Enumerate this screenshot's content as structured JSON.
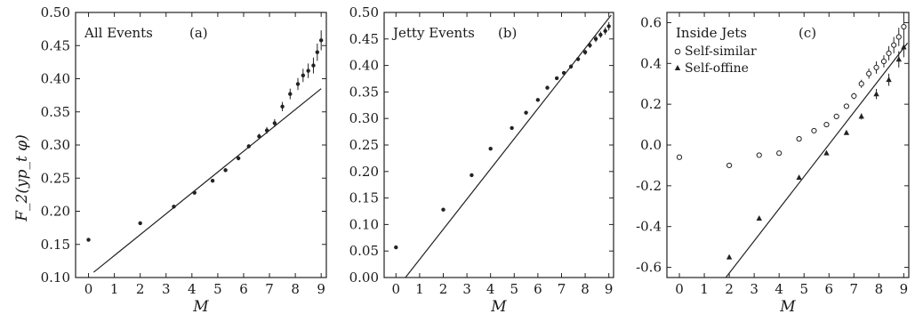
{
  "chart_data": [
    {
      "type": "scatter",
      "panel_label": "(a)",
      "title": "All Events",
      "xlabel": "M",
      "ylabel": "F_2(yp_t φ)",
      "xlim": [
        -0.5,
        9.2
      ],
      "ylim": [
        0.1,
        0.5
      ],
      "xticks": [
        0,
        1,
        2,
        3,
        4,
        5,
        6,
        7,
        8,
        9
      ],
      "yticks": [
        "0.10",
        "0.15",
        "0.20",
        "0.25",
        "0.30",
        "0.35",
        "0.40",
        "0.45",
        "0.50"
      ],
      "points": [
        {
          "x": 0,
          "y": 0.157,
          "err": 0.002
        },
        {
          "x": 2,
          "y": 0.182,
          "err": 0.002
        },
        {
          "x": 3.3,
          "y": 0.207,
          "err": 0.002
        },
        {
          "x": 4.1,
          "y": 0.228,
          "err": 0.002
        },
        {
          "x": 4.8,
          "y": 0.246,
          "err": 0.002
        },
        {
          "x": 5.3,
          "y": 0.262,
          "err": 0.003
        },
        {
          "x": 5.8,
          "y": 0.28,
          "err": 0.003
        },
        {
          "x": 6.2,
          "y": 0.298,
          "err": 0.003
        },
        {
          "x": 6.6,
          "y": 0.313,
          "err": 0.004
        },
        {
          "x": 6.9,
          "y": 0.322,
          "err": 0.005
        },
        {
          "x": 7.2,
          "y": 0.333,
          "err": 0.006
        },
        {
          "x": 7.5,
          "y": 0.358,
          "err": 0.007
        },
        {
          "x": 7.8,
          "y": 0.377,
          "err": 0.008
        },
        {
          "x": 8.1,
          "y": 0.392,
          "err": 0.009
        },
        {
          "x": 8.3,
          "y": 0.405,
          "err": 0.01
        },
        {
          "x": 8.5,
          "y": 0.412,
          "err": 0.011
        },
        {
          "x": 8.7,
          "y": 0.42,
          "err": 0.012
        },
        {
          "x": 8.85,
          "y": 0.44,
          "err": 0.013
        },
        {
          "x": 9.0,
          "y": 0.458,
          "err": 0.015
        }
      ],
      "fit_line": [
        [
          0.2,
          0.108
        ],
        [
          9.0,
          0.385
        ]
      ],
      "lim": null
    },
    {
      "type": "scatter",
      "panel_label": "(b)",
      "title": "Jetty Events",
      "xlabel": "M",
      "xlim": [
        -0.5,
        9.2
      ],
      "ylim": [
        0.0,
        0.5
      ],
      "xticks": [
        0,
        1,
        2,
        3,
        4,
        5,
        6,
        7,
        8,
        9
      ],
      "yticks": [
        "0.00",
        "0.05",
        "0.10",
        "0.15",
        "0.20",
        "0.25",
        "0.30",
        "0.35",
        "0.40",
        "0.45",
        "0.50"
      ],
      "points": [
        {
          "x": 0,
          "y": 0.057,
          "err": 0.002
        },
        {
          "x": 2,
          "y": 0.128,
          "err": 0.002
        },
        {
          "x": 3.2,
          "y": 0.193,
          "err": 0.002
        },
        {
          "x": 4,
          "y": 0.243,
          "err": 0.002
        },
        {
          "x": 4.9,
          "y": 0.282,
          "err": 0.002
        },
        {
          "x": 5.5,
          "y": 0.311,
          "err": 0.002
        },
        {
          "x": 6,
          "y": 0.335,
          "err": 0.002
        },
        {
          "x": 6.4,
          "y": 0.358,
          "err": 0.003
        },
        {
          "x": 6.8,
          "y": 0.376,
          "err": 0.003
        },
        {
          "x": 7.1,
          "y": 0.386,
          "err": 0.003
        },
        {
          "x": 7.4,
          "y": 0.398,
          "err": 0.004
        },
        {
          "x": 7.7,
          "y": 0.412,
          "err": 0.004
        },
        {
          "x": 8.0,
          "y": 0.425,
          "err": 0.005
        },
        {
          "x": 8.2,
          "y": 0.438,
          "err": 0.005
        },
        {
          "x": 8.45,
          "y": 0.45,
          "err": 0.006
        },
        {
          "x": 8.65,
          "y": 0.458,
          "err": 0.006
        },
        {
          "x": 8.85,
          "y": 0.465,
          "err": 0.007
        },
        {
          "x": 9.0,
          "y": 0.474,
          "err": 0.008
        }
      ],
      "fit_line": [
        [
          0.4,
          0.0
        ],
        [
          9.1,
          0.495
        ]
      ]
    },
    {
      "type": "scatter",
      "panel_label": "(c)",
      "title": "Inside Jets",
      "xlabel": "M",
      "xlim": [
        -0.5,
        9.2
      ],
      "ylim": [
        -0.65,
        0.65
      ],
      "xticks": [
        0,
        1,
        2,
        3,
        4,
        5,
        6,
        7,
        8,
        9
      ],
      "yticks": [
        "-0.6",
        "-0.4",
        "-0.2",
        "0.0",
        "0.2",
        "0.4",
        "0.6"
      ],
      "legend": {
        "position": "top-left",
        "entries": [
          "Self-similar",
          "Self-offine"
        ]
      },
      "series": [
        {
          "name": "Self-similar",
          "marker": "circle",
          "points": [
            {
              "x": 0,
              "y": -0.06,
              "err": 0.005
            },
            {
              "x": 2,
              "y": -0.1,
              "err": 0.005
            },
            {
              "x": 3.2,
              "y": -0.05,
              "err": 0.005
            },
            {
              "x": 4,
              "y": -0.04,
              "err": 0.006
            },
            {
              "x": 4.8,
              "y": 0.03,
              "err": 0.006
            },
            {
              "x": 5.4,
              "y": 0.07,
              "err": 0.007
            },
            {
              "x": 5.9,
              "y": 0.1,
              "err": 0.008
            },
            {
              "x": 6.3,
              "y": 0.14,
              "err": 0.01
            },
            {
              "x": 6.7,
              "y": 0.19,
              "err": 0.012
            },
            {
              "x": 7.0,
              "y": 0.24,
              "err": 0.015
            },
            {
              "x": 7.3,
              "y": 0.3,
              "err": 0.02
            },
            {
              "x": 7.6,
              "y": 0.35,
              "err": 0.025
            },
            {
              "x": 7.9,
              "y": 0.38,
              "err": 0.03
            },
            {
              "x": 8.2,
              "y": 0.41,
              "err": 0.03
            },
            {
              "x": 8.4,
              "y": 0.45,
              "err": 0.035
            },
            {
              "x": 8.6,
              "y": 0.49,
              "err": 0.04
            },
            {
              "x": 8.8,
              "y": 0.53,
              "err": 0.045
            },
            {
              "x": 9.0,
              "y": 0.58,
              "err": 0.05
            }
          ]
        },
        {
          "name": "Self-offine",
          "marker": "triangle",
          "points": [
            {
              "x": 2,
              "y": -0.55,
              "err": 0.005
            },
            {
              "x": 3.2,
              "y": -0.36,
              "err": 0.005
            },
            {
              "x": 4.8,
              "y": -0.16,
              "err": 0.006
            },
            {
              "x": 5.9,
              "y": -0.04,
              "err": 0.008
            },
            {
              "x": 6.7,
              "y": 0.06,
              "err": 0.01
            },
            {
              "x": 7.3,
              "y": 0.14,
              "err": 0.015
            },
            {
              "x": 7.9,
              "y": 0.25,
              "err": 0.025
            },
            {
              "x": 8.4,
              "y": 0.32,
              "err": 0.03
            },
            {
              "x": 8.8,
              "y": 0.42,
              "err": 0.04
            },
            {
              "x": 9.0,
              "y": 0.48,
              "err": 0.05
            }
          ]
        }
      ],
      "fit_line": [
        [
          1.8,
          -0.66
        ],
        [
          9.15,
          0.5
        ]
      ]
    }
  ]
}
